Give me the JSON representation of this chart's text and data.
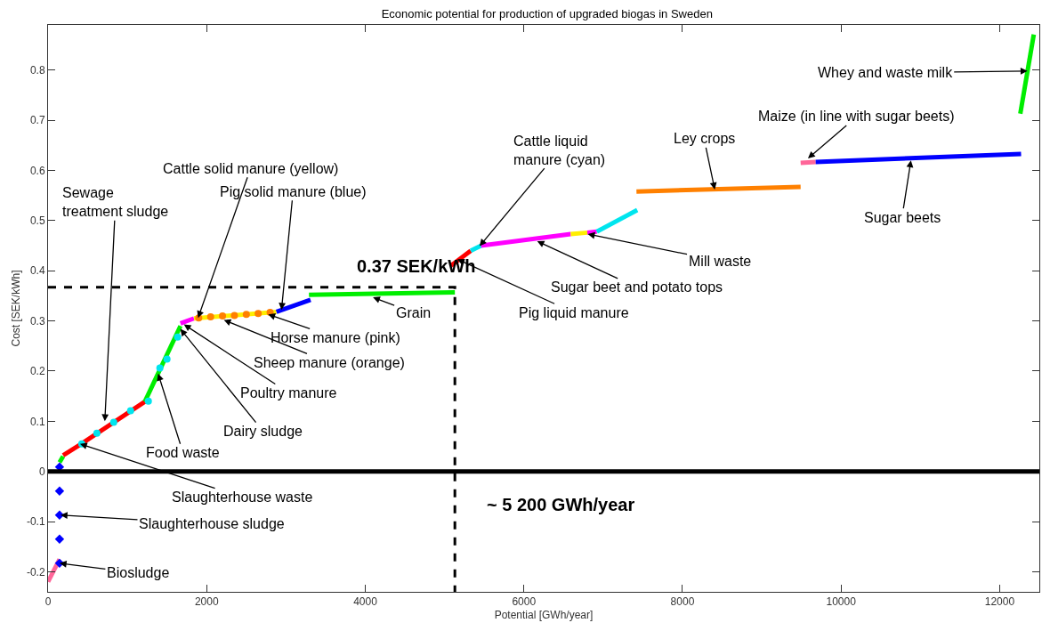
{
  "chart_data": {
    "type": "line",
    "title": "Economic potential for production of upgraded biogas in Sweden",
    "xlabel": "Potential [GWh/year]",
    "ylabel": "Cost [SEK/kWh]",
    "xlim": [
      0,
      12500
    ],
    "xticks": [
      0,
      2000,
      4000,
      6000,
      8000,
      10000,
      12000
    ],
    "ylim": [
      -0.24,
      0.89
    ],
    "yticks": [
      -0.2,
      -0.1,
      0,
      0.1,
      0.2,
      0.3,
      0.4,
      0.5,
      0.6,
      0.7,
      0.8
    ],
    "series": [
      {
        "color": "#ff6699",
        "x": [
          0,
          145
        ],
        "values": [
          -0.22,
          -0.175
        ]
      },
      {
        "type": "scatter",
        "marker": "diamond",
        "color": "#0000ff",
        "x": [
          145,
          145,
          145,
          145,
          145
        ],
        "values": [
          0.009,
          -0.039,
          -0.087,
          -0.135,
          -0.183
        ]
      },
      {
        "color": "#00ee00",
        "x": [
          145,
          190
        ],
        "values": [
          0.018,
          0.03
        ]
      },
      {
        "color": "#ff0000",
        "x": [
          190,
          400,
          1220
        ],
        "values": [
          0.032,
          0.053,
          0.139
        ]
      },
      {
        "color": "#00ee00",
        "x": [
          1220,
          1670
        ],
        "values": [
          0.139,
          0.29
        ]
      },
      {
        "type": "scatter",
        "marker": "circle",
        "color": "#00e5ee",
        "x": [
          425,
          616,
          828,
          1041,
          1265,
          1410,
          1500,
          1634
        ],
        "values": [
          0.055,
          0.076,
          0.098,
          0.121,
          0.14,
          0.206,
          0.224,
          0.268
        ]
      },
      {
        "color": "#ff00ff",
        "x": [
          1670,
          1840
        ],
        "values": [
          0.295,
          0.305
        ]
      },
      {
        "color": "#ffee00",
        "x": [
          1840,
          2880
        ],
        "values": [
          0.305,
          0.318
        ]
      },
      {
        "type": "scatter",
        "marker": "circle",
        "color": "#ff8000",
        "x": [
          1900,
          2050,
          2200,
          2350,
          2500,
          2650,
          2800
        ],
        "values": [
          0.306,
          0.308,
          0.31,
          0.311,
          0.313,
          0.315,
          0.317
        ]
      },
      {
        "color": "#0000ff",
        "x": [
          2880,
          3310
        ],
        "values": [
          0.318,
          0.342
        ]
      },
      {
        "color": "#00ee00",
        "x": [
          3290,
          5130
        ],
        "values": [
          0.352,
          0.357
        ]
      },
      {
        "color": "#ff0000",
        "x": [
          5080,
          5330
        ],
        "values": [
          0.41,
          0.44
        ]
      },
      {
        "color": "#00e5ee",
        "x": [
          5330,
          5460
        ],
        "values": [
          0.44,
          0.45
        ]
      },
      {
        "color": "#ff00ff",
        "x": [
          5460,
          6590
        ],
        "values": [
          0.45,
          0.473
        ]
      },
      {
        "color": "#ffee00",
        "x": [
          6590,
          6800
        ],
        "values": [
          0.473,
          0.476
        ]
      },
      {
        "color": "#ff00ff",
        "x": [
          6800,
          6920
        ],
        "values": [
          0.476,
          0.478
        ]
      },
      {
        "color": "#00e5ee",
        "x": [
          6920,
          7430
        ],
        "values": [
          0.478,
          0.521
        ]
      },
      {
        "color": "#ff8000",
        "x": [
          7420,
          9490
        ],
        "values": [
          0.558,
          0.567
        ]
      },
      {
        "color": "#ff6699",
        "x": [
          9490,
          9680
        ],
        "values": [
          0.615,
          0.617
        ]
      },
      {
        "color": "#0000ff",
        "x": [
          9680,
          12270
        ],
        "values": [
          0.617,
          0.633
        ]
      },
      {
        "color": "#00ee00",
        "x": [
          12260,
          12430
        ],
        "values": [
          0.713,
          0.871
        ]
      },
      {
        "color": "#000000",
        "line_style": "dashed",
        "x": [
          0,
          5130,
          5130
        ],
        "values": [
          0.367,
          0.367,
          -0.24
        ]
      }
    ],
    "ref_lines": [
      {
        "axis": "y",
        "value": 0,
        "color": "#000000"
      }
    ],
    "annotations": [
      {
        "text": "Sewage\ntreatment sludge",
        "x": 716,
        "y": 0.1
      },
      {
        "text": "Cattle solid manure (yellow)",
        "x": 1892,
        "y": 0.306
      },
      {
        "text": "Pig solid manure (blue)",
        "x": 2944,
        "y": 0.322
      },
      {
        "text": "Grain",
        "x": 4097,
        "y": 0.347
      },
      {
        "text": "Horse manure (pink)",
        "x": 2776,
        "y": 0.313
      },
      {
        "text": "Sheep manure (orange)",
        "x": 2217,
        "y": 0.302
      },
      {
        "text": "Poultry manure",
        "x": 1713,
        "y": 0.293
      },
      {
        "text": "Dairy sludge",
        "x": 1668,
        "y": 0.284
      },
      {
        "text": "Food waste",
        "x": 1388,
        "y": 0.195
      },
      {
        "text": "Slaughterhouse waste",
        "x": 403,
        "y": 0.055
      },
      {
        "text": "Slaughterhouse sludge",
        "x": 157,
        "y": -0.087
      },
      {
        "text": "Biosludge",
        "x": 145,
        "y": -0.183
      },
      {
        "text": "Cattle liquid\nmanure (cyan)",
        "x": 5441,
        "y": 0.449
      },
      {
        "text": "Mill waste",
        "x": 6806,
        "y": 0.473
      },
      {
        "text": "Sugar beet and potato tops",
        "x": 6168,
        "y": 0.459
      },
      {
        "text": "Pig liquid manure",
        "x": 5161,
        "y": 0.423
      },
      {
        "text": "Ley crops",
        "x": 8407,
        "y": 0.562
      },
      {
        "text": "Maize (in line with sugar beets)",
        "x": 9582,
        "y": 0.624
      },
      {
        "text": "Sugar beets",
        "x": 10881,
        "y": 0.62
      },
      {
        "text": "Whey and waste milk",
        "x": 12351,
        "y": 0.798
      },
      "0.37 SEK/kWh",
      "~ 5 200 GWh/year"
    ]
  }
}
